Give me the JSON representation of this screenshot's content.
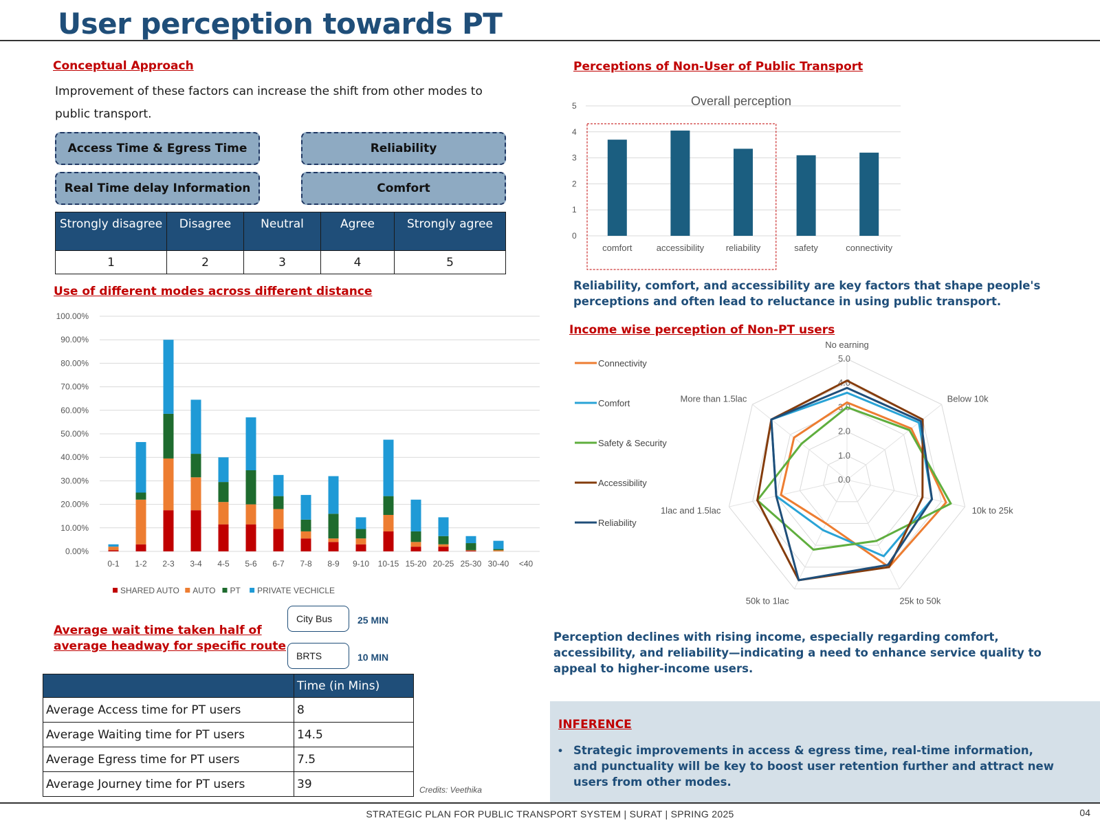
{
  "page": {
    "title": "User perception towards PT",
    "footer": "STRATEGIC PLAN FOR PUBLIC TRANSPORT SYSTEM | SURAT |  SPRING 2025",
    "page_number": "04",
    "credits": "Credits: Veethika"
  },
  "conceptual": {
    "heading": "Conceptual Approach",
    "text_line1": "Improvement of these factors can increase the shift from other modes to",
    "text_line2": "public transport.",
    "factors": [
      "Access Time & Egress Time",
      "Reliability",
      "Real Time delay Information",
      "Comfort"
    ],
    "colors": {
      "factor_fill": "#8eaac2",
      "header_blue": "#1f4e79",
      "red_heading": "#c00000"
    }
  },
  "likert": {
    "headers": [
      "Strongly disagree",
      "Disagree",
      "Neutral",
      "Agree",
      "Strongly agree"
    ],
    "values": [
      "1",
      "2",
      "3",
      "4",
      "5"
    ]
  },
  "modes_heading": "Use of different modes across different distance",
  "perception_heading": "Perceptions of Non-User of Public Transport",
  "perception_note": "Reliability, comfort, and accessibility are key factors that shape people's perceptions and often lead to reluctance in using public transport.",
  "income_heading": "Income wise perception of Non-PT users",
  "income_note": "Perception declines with rising income, especially regarding comfort, accessibility, and reliability—indicating a need to enhance service quality to appeal to higher-income users.",
  "wait": {
    "heading_line1": "Average wait time taken half of",
    "heading_line2": "average headway for specific route",
    "items": [
      {
        "mode": "City Bus",
        "time": "25 MIN"
      },
      {
        "mode": "BRTS",
        "time": "10 MIN"
      }
    ]
  },
  "times_table": {
    "header_blank": "",
    "header": "Time (in Mins)",
    "rows": [
      {
        "label": "Average Access time for PT users",
        "value": "8"
      },
      {
        "label": "Average Waiting time for PT users",
        "value": "14.5"
      },
      {
        "label": "Average Egress time for PT users",
        "value": "7.5"
      },
      {
        "label": "Average Journey time for PT users",
        "value": "39"
      }
    ]
  },
  "inference": {
    "heading": "INFERENCE",
    "text": "Strategic improvements in access & egress time, real-time information, and punctuality will be key to boost user retention further and attract new users from other modes."
  },
  "chart_data": [
    {
      "type": "bar",
      "stacked": true,
      "title": "",
      "xlabel": "",
      "ylabel": "",
      "ylim": [
        0,
        100
      ],
      "y_tick_labels": [
        "0.00%",
        "10.00%",
        "20.00%",
        "30.00%",
        "40.00%",
        "50.00%",
        "60.00%",
        "70.00%",
        "80.00%",
        "90.00%",
        "100.00%"
      ],
      "categories": [
        "0-1",
        "1-2",
        "2-3",
        "3-4",
        "4-5",
        "5-6",
        "6-7",
        "7-8",
        "8-9",
        "9-10",
        "10-15",
        "15-20",
        "20-25",
        "25-30",
        "30-40",
        "<40"
      ],
      "series": [
        {
          "name": "SHARED AUTO",
          "color": "#c00000",
          "values": [
            0.5,
            3,
            17.5,
            17.5,
            11.5,
            11.5,
            9.5,
            5.5,
            4,
            3,
            8.5,
            2,
            2,
            0.3,
            0,
            0
          ]
        },
        {
          "name": "AUTO",
          "color": "#ed7d31",
          "values": [
            1.5,
            19,
            22,
            14,
            9.5,
            8.5,
            8.5,
            3,
            1.5,
            2.5,
            7,
            2,
            1,
            0.2,
            0.5,
            0
          ]
        },
        {
          "name": "PT",
          "color": "#1e6b2e",
          "values": [
            0,
            3,
            19,
            10,
            8.5,
            14.5,
            5.5,
            5,
            10.5,
            4,
            8,
            4.5,
            3.5,
            3,
            0.5,
            0
          ]
        },
        {
          "name": "PRIVATE VECHICLE",
          "color": "#1f9ad6",
          "values": [
            1,
            21.5,
            31.5,
            23,
            10.5,
            22.5,
            9,
            10.5,
            16,
            5,
            24,
            13.5,
            8,
            3,
            3.5,
            0
          ]
        }
      ],
      "legend_position": "bottom",
      "grid": true
    },
    {
      "type": "bar",
      "title": "Overall perception",
      "xlabel": "",
      "ylabel": "",
      "ylim": [
        0,
        5
      ],
      "categories": [
        "comfort",
        "accessibility",
        "reliability",
        "safety",
        "connectivity"
      ],
      "values": [
        3.7,
        4.05,
        3.35,
        3.1,
        3.2
      ],
      "color": "#1b5e80",
      "highlighted_categories": [
        "comfort",
        "accessibility",
        "reliability"
      ],
      "grid": true
    },
    {
      "type": "radar",
      "title": "",
      "range": [
        0,
        5
      ],
      "tick_labels": [
        "0.0",
        "1.0",
        "2.0",
        "3.0",
        "4.0",
        "5.0"
      ],
      "categories": [
        "No earning",
        "Below 10k",
        "10k to 25k",
        "25k to 50k",
        "50k to 1lac",
        "1lac and 1.5lac",
        "More than 1.5lac"
      ],
      "series": [
        {
          "name": "Connectivity",
          "color": "#ed7d31",
          "values": [
            3.2,
            3.4,
            4.2,
            4.0,
            2.0,
            2.8,
            2.8
          ]
        },
        {
          "name": "Comfort",
          "color": "#29a3d6",
          "values": [
            3.6,
            3.8,
            3.6,
            3.5,
            2.3,
            3.0,
            4.0
          ]
        },
        {
          "name": "Safety & Security",
          "color": "#5fae3e",
          "values": [
            3.0,
            3.3,
            4.4,
            2.8,
            3.2,
            3.8,
            2.4
          ]
        },
        {
          "name": "Accessibility",
          "color": "#843c0c",
          "values": [
            4.1,
            4.0,
            3.2,
            4.0,
            4.6,
            3.8,
            4.0
          ]
        },
        {
          "name": "Reliability",
          "color": "#1f4e79",
          "values": [
            3.8,
            3.9,
            3.6,
            3.9,
            4.6,
            3.0,
            4.0
          ]
        }
      ],
      "legend_position": "left"
    }
  ]
}
